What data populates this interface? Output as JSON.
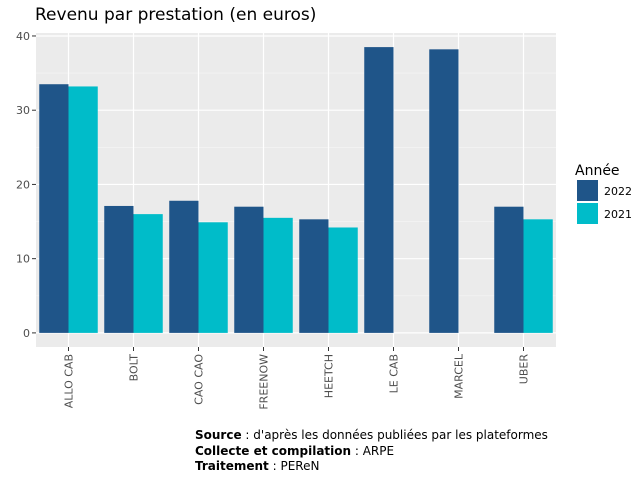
{
  "chart_data": {
    "type": "bar",
    "title": "Revenu par prestation (en euros)",
    "xlabel": "",
    "ylabel": "",
    "categories": [
      "ALLO CAB",
      "BOLT",
      "CAO CAO",
      "FREENOW",
      "HEETCH",
      "LE CAB",
      "MARCEL",
      "UBER"
    ],
    "series": [
      {
        "name": "2022",
        "color": "#1f5589",
        "values": [
          33.5,
          17.1,
          17.8,
          17.0,
          15.3,
          38.5,
          38.2,
          17.0
        ]
      },
      {
        "name": "2021",
        "color": "#00bcc9",
        "values": [
          33.2,
          16.0,
          14.9,
          15.5,
          14.2,
          null,
          null,
          15.3
        ]
      }
    ],
    "ylim": [
      -1.9,
      40.4
    ],
    "yticks": [
      "0",
      "10",
      "20",
      "30",
      "40"
    ],
    "grid": true,
    "legend": {
      "title": "Année",
      "position": "right"
    }
  },
  "caption": {
    "source_label": "Source",
    "source_text": " : d'après les données publiées par les plateformes",
    "collecte_label": "Collecte et compilation",
    "collecte_text": " : ARPE",
    "traitement_label": "Traitement",
    "traitement_text": " : PEReN"
  }
}
